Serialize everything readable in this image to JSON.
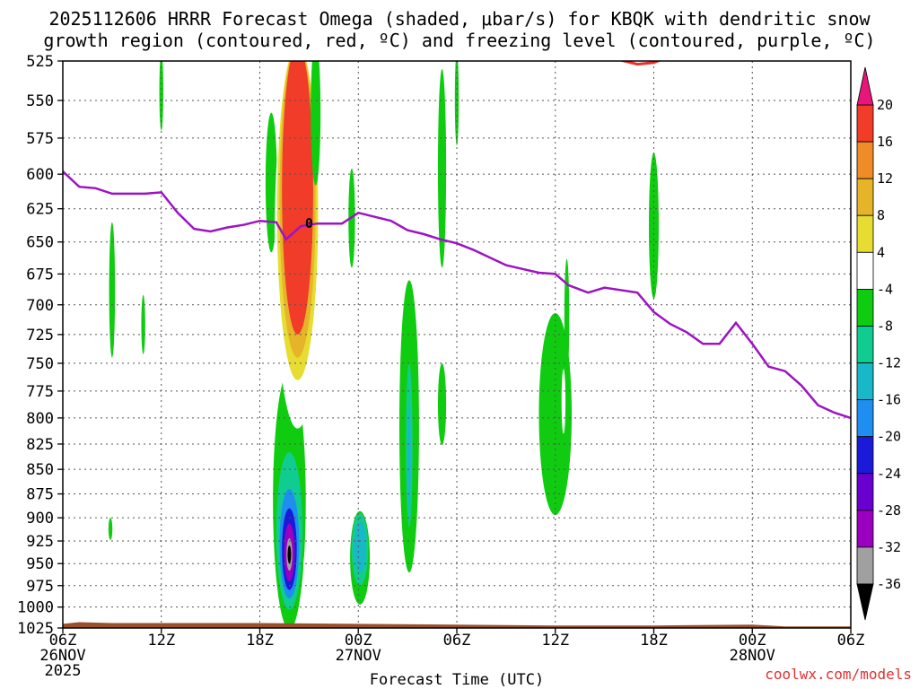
{
  "chart_data": {
    "type": "time-height-section",
    "title_line1": "2025112606 HRRR Forecast Omega (shaded, μbar/s) for KBQK with dendritic snow",
    "title_line2": "growth region (contoured, red, ºC) and freezing level (contoured, purple, ºC)",
    "xlabel": "Forecast Time (UTC)",
    "credit": "coolwx.com/models",
    "y_ticks": [
      525,
      550,
      575,
      600,
      625,
      650,
      675,
      700,
      725,
      750,
      775,
      800,
      825,
      850,
      875,
      900,
      925,
      950,
      975,
      1000,
      1025
    ],
    "xlim_hours": [
      0,
      48
    ],
    "x_ticks": [
      {
        "hour": 0,
        "lines": [
          "06Z",
          "26NOV",
          "2025"
        ]
      },
      {
        "hour": 6,
        "lines": [
          "12Z"
        ]
      },
      {
        "hour": 12,
        "lines": [
          "18Z"
        ]
      },
      {
        "hour": 18,
        "lines": [
          "00Z",
          "27NOV"
        ]
      },
      {
        "hour": 24,
        "lines": [
          "06Z"
        ]
      },
      {
        "hour": 30,
        "lines": [
          "12Z"
        ]
      },
      {
        "hour": 36,
        "lines": [
          "18Z"
        ]
      },
      {
        "hour": 42,
        "lines": [
          "00Z",
          "28NOV"
        ]
      },
      {
        "hour": 48,
        "lines": [
          "06Z"
        ]
      }
    ],
    "colorbar": {
      "levels": [
        -36,
        -32,
        -28,
        -24,
        -20,
        -16,
        -12,
        -8,
        -4,
        4,
        8,
        12,
        16,
        20
      ],
      "colors": [
        "#000000",
        "#a0a0a0",
        "#9b00c0",
        "#6a00d0",
        "#1a1ad8",
        "#1e8ff0",
        "#19b8c8",
        "#10cc90",
        "#10cc10",
        "#ffffff",
        "#e6dc32",
        "#e6b428",
        "#f08c28",
        "#f03c28",
        "#e6167a"
      ],
      "labels": [
        "20",
        "16",
        "12",
        "8",
        "4",
        "-4",
        "-8",
        "-12",
        "-16",
        "-20",
        "-24",
        "-28",
        "-32",
        "-36"
      ]
    },
    "freezing_level_label": "0",
    "freezing_level": [
      [
        0,
        598
      ],
      [
        1,
        609
      ],
      [
        2,
        610
      ],
      [
        3,
        614
      ],
      [
        5,
        614
      ],
      [
        6,
        613
      ],
      [
        7,
        628
      ],
      [
        8,
        640
      ],
      [
        9,
        642
      ],
      [
        10,
        639
      ],
      [
        11,
        637
      ],
      [
        12,
        634
      ],
      [
        13,
        635
      ],
      [
        13.6,
        648
      ],
      [
        14.5,
        638
      ],
      [
        15.5,
        636
      ],
      [
        17,
        636
      ],
      [
        18,
        628
      ],
      [
        19,
        631
      ],
      [
        20,
        634
      ],
      [
        21,
        641
      ],
      [
        22,
        644
      ],
      [
        23,
        648
      ],
      [
        24,
        651
      ],
      [
        25,
        656
      ],
      [
        26,
        662
      ],
      [
        27,
        668
      ],
      [
        28,
        671
      ],
      [
        29,
        674
      ],
      [
        30,
        675
      ],
      [
        30.8,
        684
      ],
      [
        32,
        690
      ],
      [
        33,
        686
      ],
      [
        35,
        690
      ],
      [
        36,
        706
      ],
      [
        37,
        716
      ],
      [
        38,
        723
      ],
      [
        39,
        733
      ],
      [
        40,
        733
      ],
      [
        41,
        715
      ],
      [
        42,
        733
      ],
      [
        43,
        753
      ],
      [
        44,
        757
      ],
      [
        45,
        770
      ],
      [
        46,
        788
      ],
      [
        47,
        795
      ],
      [
        48,
        800
      ]
    ],
    "dgz_top_segment": [
      [
        33,
        522
      ],
      [
        35,
        527
      ],
      [
        36,
        526
      ],
      [
        37,
        522
      ]
    ],
    "surface_pressure": [
      [
        0,
        1020
      ],
      [
        1,
        1018
      ],
      [
        3,
        1019
      ],
      [
        8,
        1019
      ],
      [
        12,
        1019
      ],
      [
        18,
        1020
      ],
      [
        24,
        1021
      ],
      [
        30,
        1022
      ],
      [
        36,
        1022
      ],
      [
        42,
        1021
      ],
      [
        44,
        1023
      ],
      [
        48,
        1023
      ]
    ],
    "omega_blobs": [
      {
        "cx": 2.0,
        "cy": 600,
        "rx": 0.35,
        "ry": 88,
        "level": 4
      },
      {
        "cx": 4.1,
        "cy": 545,
        "rx": 0.35,
        "ry": 35,
        "level": 4
      },
      {
        "cx": 6.0,
        "cy": 545,
        "rx": 0.12,
        "ry": 25,
        "level": -4
      },
      {
        "cx": 3.0,
        "cy": 690,
        "rx": 0.18,
        "ry": 55,
        "level": -4
      },
      {
        "cx": 4.9,
        "cy": 717,
        "rx": 0.12,
        "ry": 25,
        "level": -4
      },
      {
        "cx": 2.9,
        "cy": 912,
        "rx": 0.12,
        "ry": 12,
        "level": -4
      },
      {
        "cx": 4.0,
        "cy": 838,
        "rx": 0.25,
        "ry": 75,
        "level": 4
      },
      {
        "cx": 5.9,
        "cy": 783,
        "rx": 0.18,
        "ry": 22,
        "level": 4
      },
      {
        "cx": 7.0,
        "cy": 910,
        "rx": 0.5,
        "ry": 70,
        "level": 4
      },
      {
        "cx": 11.2,
        "cy": 812,
        "rx": 0.5,
        "ry": 60,
        "level": 4
      },
      {
        "cx": 12.7,
        "cy": 608,
        "rx": 0.35,
        "ry": 50,
        "level": -4
      },
      {
        "cx": 13.8,
        "cy": 892,
        "rx": 1.0,
        "ry": 135,
        "level": -4
      },
      {
        "cx": 13.8,
        "cy": 918,
        "rx": 0.8,
        "ry": 85,
        "level": -8
      },
      {
        "cx": 13.8,
        "cy": 930,
        "rx": 0.6,
        "ry": 60,
        "level": -16
      },
      {
        "cx": 13.8,
        "cy": 935,
        "rx": 0.45,
        "ry": 45,
        "level": -20
      },
      {
        "cx": 13.8,
        "cy": 938,
        "rx": 0.32,
        "ry": 32,
        "level": -28
      },
      {
        "cx": 13.8,
        "cy": 940,
        "rx": 0.18,
        "ry": 18,
        "level": -32
      },
      {
        "cx": 13.8,
        "cy": 940,
        "rx": 0.08,
        "ry": 10,
        "level": -36
      },
      {
        "cx": 15.0,
        "cy": 955,
        "rx": 0.35,
        "ry": 25,
        "level": 4
      },
      {
        "cx": 14.3,
        "cy": 665,
        "rx": 1.4,
        "ry": 145,
        "level": 4
      },
      {
        "cx": 14.3,
        "cy": 640,
        "rx": 1.25,
        "ry": 125,
        "level": 8
      },
      {
        "cx": 14.3,
        "cy": 630,
        "rx": 1.1,
        "ry": 115,
        "level": 12
      },
      {
        "cx": 14.3,
        "cy": 620,
        "rx": 0.95,
        "ry": 105,
        "level": 20
      },
      {
        "cx": 15.4,
        "cy": 560,
        "rx": 0.3,
        "ry": 48,
        "level": -4
      },
      {
        "cx": 17.6,
        "cy": 633,
        "rx": 0.2,
        "ry": 37,
        "level": -4
      },
      {
        "cx": 17.0,
        "cy": 910,
        "rx": 0.12,
        "ry": 15,
        "level": 4
      },
      {
        "cx": 19.3,
        "cy": 810,
        "rx": 0.8,
        "ry": 30,
        "level": 4
      },
      {
        "cx": 18.1,
        "cy": 945,
        "rx": 0.6,
        "ry": 52,
        "level": -4
      },
      {
        "cx": 18.1,
        "cy": 935,
        "rx": 0.5,
        "ry": 40,
        "level": -8
      },
      {
        "cx": 18.1,
        "cy": 932,
        "rx": 0.38,
        "ry": 28,
        "level": -12
      },
      {
        "cx": 21.1,
        "cy": 820,
        "rx": 0.6,
        "ry": 140,
        "level": -4
      },
      {
        "cx": 21.1,
        "cy": 830,
        "rx": 0.2,
        "ry": 80,
        "level": -8
      },
      {
        "cx": 21.1,
        "cy": 840,
        "rx": 0.1,
        "ry": 50,
        "level": -12
      },
      {
        "cx": 23.1,
        "cy": 600,
        "rx": 0.25,
        "ry": 70,
        "level": -4
      },
      {
        "cx": 23.1,
        "cy": 788,
        "rx": 0.25,
        "ry": 38,
        "level": -4
      },
      {
        "cx": 24.0,
        "cy": 550,
        "rx": 0.12,
        "ry": 30,
        "level": -4
      },
      {
        "cx": 30.0,
        "cy": 802,
        "rx": 1.0,
        "ry": 95,
        "level": -4
      },
      {
        "cx": 30.7,
        "cy": 713,
        "rx": 0.15,
        "ry": 50,
        "level": -4
      },
      {
        "cx": 30.5,
        "cy": 785,
        "rx": 0.12,
        "ry": 30,
        "level": 4
      },
      {
        "cx": 36.0,
        "cy": 640,
        "rx": 0.3,
        "ry": 55,
        "level": -4
      },
      {
        "cx": 45.8,
        "cy": 908,
        "rx": 1.2,
        "ry": 88,
        "level": 4
      }
    ]
  }
}
